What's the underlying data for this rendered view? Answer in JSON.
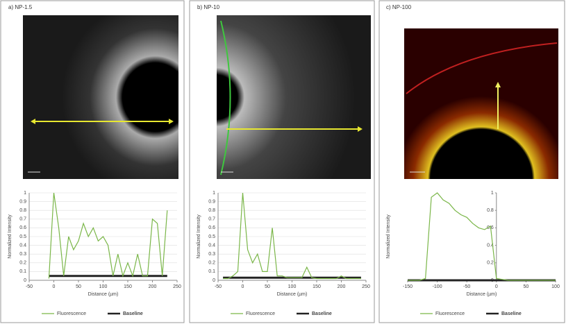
{
  "chart_data": [
    {
      "type": "line",
      "title": "a) NP-1.5",
      "x_label": "Distance (µm)",
      "y_label": "Normalized Intensity",
      "x": [
        -10,
        0,
        10,
        20,
        30,
        40,
        50,
        60,
        70,
        80,
        90,
        100,
        110,
        120,
        130,
        140,
        150,
        160,
        170,
        180,
        190,
        200,
        210,
        220,
        230
      ],
      "series": [
        {
          "name": "Fluorescence",
          "color": "#7ab648",
          "values": [
            0.02,
            1.0,
            0.6,
            0.05,
            0.5,
            0.35,
            0.45,
            0.65,
            0.5,
            0.6,
            0.45,
            0.5,
            0.4,
            0.05,
            0.3,
            0.05,
            0.2,
            0.05,
            0.3,
            0.05,
            0.05,
            0.7,
            0.65,
            0.05,
            0.8
          ]
        },
        {
          "name": "Baseline",
          "color": "#222222",
          "values": [
            0.05,
            0.05,
            0.05,
            0.05,
            0.05,
            0.05,
            0.05,
            0.05,
            0.05,
            0.05,
            0.05,
            0.05,
            0.05,
            0.05,
            0.05,
            0.05,
            0.05,
            0.05,
            0.05,
            0.05,
            0.05,
            0.05,
            0.05,
            0.05,
            0.05
          ]
        }
      ],
      "xlim": [
        -50,
        250
      ],
      "xticks": [
        -50,
        0,
        50,
        100,
        150,
        200,
        250
      ],
      "ylim": [
        0,
        1
      ],
      "yticks": [
        0,
        0.1,
        0.2,
        0.3,
        0.4,
        0.5,
        0.6,
        0.7,
        0.8,
        0.9,
        1
      ],
      "grid": true
    },
    {
      "type": "line",
      "title": "b) NP-10",
      "x_label": "Distance (µm)",
      "y_label": "Normalized Intensity",
      "x": [
        -40,
        -30,
        -20,
        -10,
        0,
        10,
        20,
        30,
        40,
        50,
        60,
        70,
        80,
        90,
        100,
        110,
        120,
        130,
        140,
        150,
        160,
        170,
        180,
        190,
        200,
        210,
        220,
        230,
        240
      ],
      "series": [
        {
          "name": "Fluorescence",
          "color": "#7ab648",
          "values": [
            0.02,
            0.02,
            0.05,
            0.1,
            1.0,
            0.35,
            0.2,
            0.3,
            0.1,
            0.1,
            0.6,
            0.05,
            0.05,
            0.03,
            0.03,
            0.03,
            0.03,
            0.15,
            0.03,
            0.02,
            0.02,
            0.02,
            0.02,
            0.02,
            0.05,
            0.02,
            0.02,
            0.02,
            0.02
          ]
        },
        {
          "name": "Baseline",
          "color": "#222222",
          "values": [
            0.03,
            0.03,
            0.03,
            0.03,
            0.03,
            0.03,
            0.03,
            0.03,
            0.03,
            0.03,
            0.03,
            0.03,
            0.03,
            0.03,
            0.03,
            0.03,
            0.03,
            0.03,
            0.03,
            0.03,
            0.03,
            0.03,
            0.03,
            0.03,
            0.03,
            0.03,
            0.03,
            0.03,
            0.03
          ]
        }
      ],
      "xlim": [
        -50,
        250
      ],
      "xticks": [
        -50,
        0,
        50,
        100,
        150,
        200,
        250
      ],
      "ylim": [
        0,
        1
      ],
      "yticks": [
        0,
        0.1,
        0.2,
        0.3,
        0.4,
        0.5,
        0.6,
        0.7,
        0.8,
        0.9,
        1
      ],
      "grid": true
    },
    {
      "type": "line",
      "title": "c) NP-100",
      "x_label": "Distance (µm)",
      "y_label": "Normalized Intensity",
      "x": [
        -150,
        -140,
        -130,
        -120,
        -110,
        -100,
        -90,
        -80,
        -70,
        -60,
        -50,
        -40,
        -30,
        -20,
        -10,
        0,
        10,
        20,
        30,
        40,
        50,
        60,
        70,
        80,
        90,
        100
      ],
      "series": [
        {
          "name": "Fluorescence",
          "color": "#7ab648",
          "values": [
            0,
            0,
            0,
            0.02,
            0.95,
            1.0,
            0.92,
            0.88,
            0.8,
            0.75,
            0.72,
            0.65,
            0.6,
            0.58,
            0.62,
            0.02,
            0.01,
            0,
            0,
            0,
            0,
            0,
            0,
            0,
            0,
            0
          ]
        },
        {
          "name": "Baseline",
          "color": "#222222",
          "values": [
            0,
            0,
            0,
            0,
            0,
            0,
            0,
            0,
            0,
            0,
            0,
            0,
            0,
            0,
            0,
            0,
            0,
            0,
            0,
            0,
            0,
            0,
            0,
            0,
            0,
            0
          ]
        }
      ],
      "xlim": [
        -150,
        100
      ],
      "xticks": [
        -150,
        -100,
        -50,
        0,
        50,
        100
      ],
      "y_axis_at_x": 0,
      "ylim": [
        0,
        1
      ],
      "yticks": [
        0,
        0.2,
        0.4,
        0.6,
        0.8,
        1
      ],
      "grid": false
    }
  ]
}
